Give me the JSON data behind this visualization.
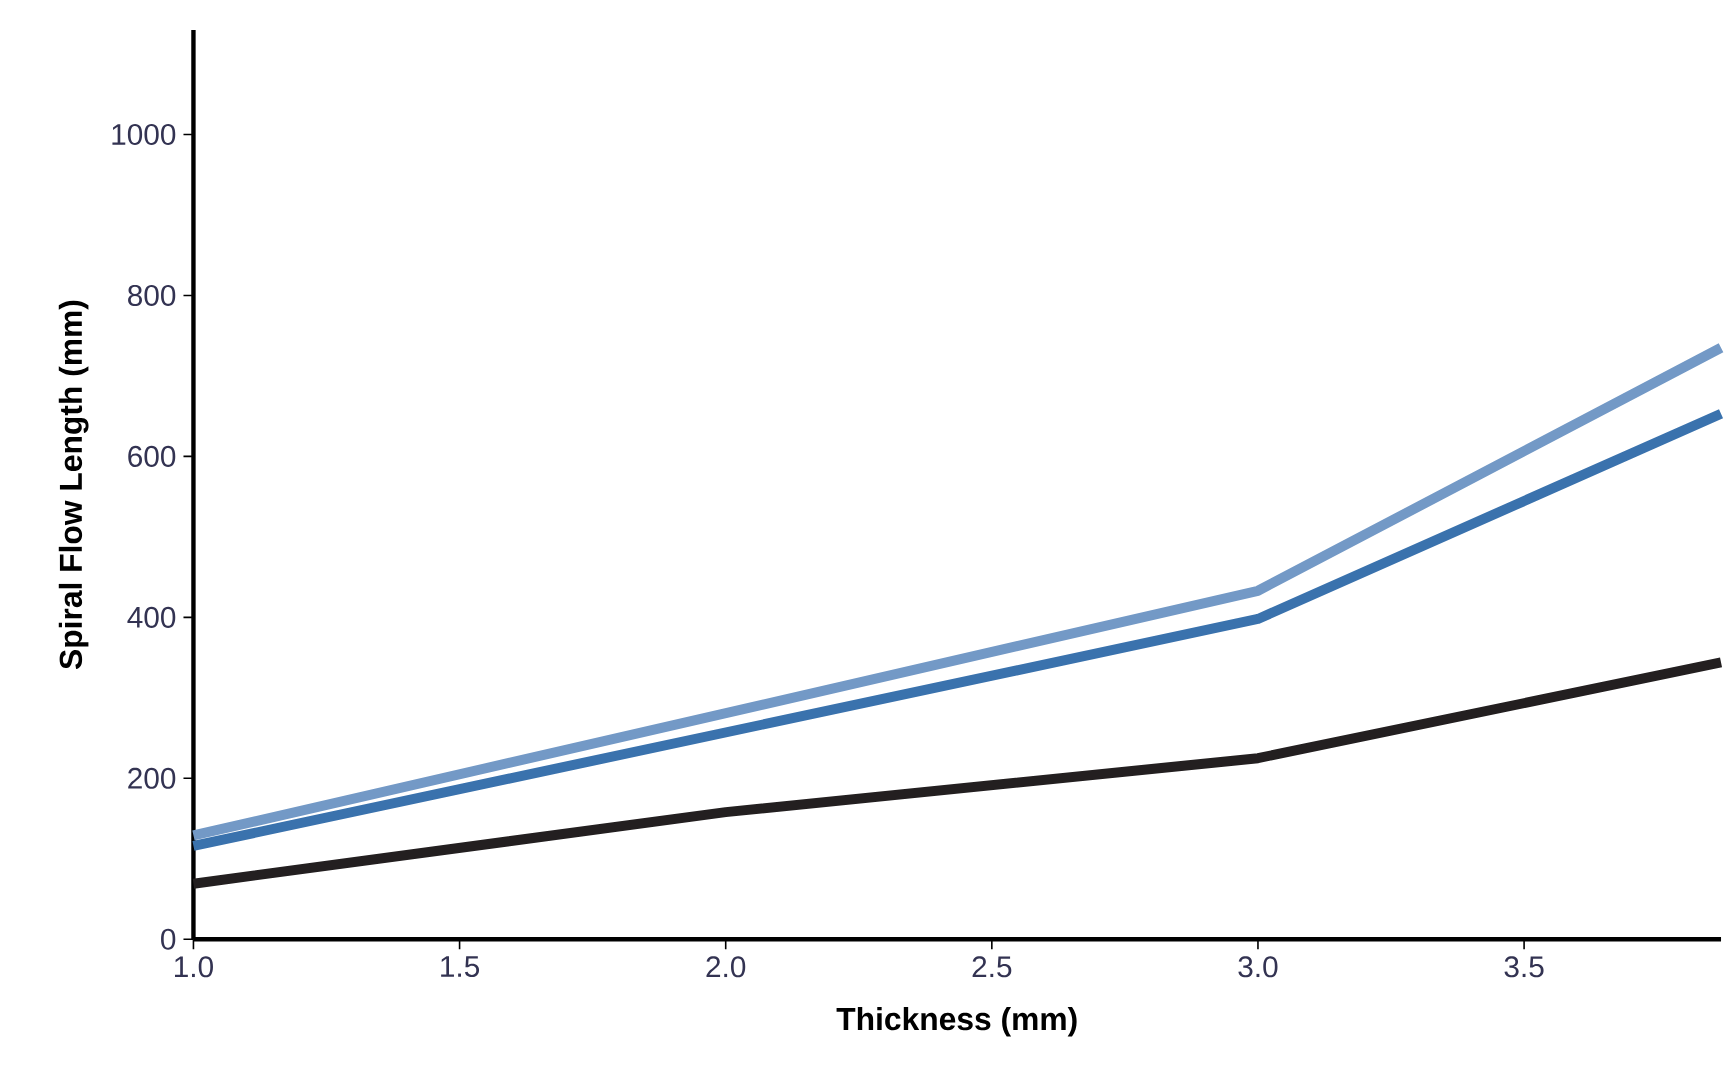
{
  "chart_data": {
    "type": "line",
    "xlabel": "Thickness (mm)",
    "ylabel": "Spiral Flow Length (mm)",
    "xlim": [
      1.0,
      3.87
    ],
    "ylim": [
      0,
      1130
    ],
    "xticks": [
      {
        "value": 1.0,
        "label": "1.0"
      },
      {
        "value": 1.5,
        "label": "1.5"
      },
      {
        "value": 2.0,
        "label": "2.0"
      },
      {
        "value": 2.5,
        "label": "2.5"
      },
      {
        "value": 3.0,
        "label": "3.0"
      },
      {
        "value": 3.5,
        "label": "3.5"
      }
    ],
    "yticks": [
      0,
      200,
      400,
      600,
      800,
      1000
    ],
    "grid": false,
    "marker": "none",
    "line_style": "solid",
    "series": [
      {
        "color": "#7399c6",
        "x": [
          1.0,
          3.0,
          3.87
        ],
        "values": [
          129,
          433,
          735
        ]
      },
      {
        "color": "#3a72ad",
        "x": [
          1.0,
          3.0,
          3.87
        ],
        "values": [
          116,
          398,
          653
        ]
      },
      {
        "color": "#231f20",
        "x": [
          1.0,
          2.0,
          3.0,
          3.87
        ],
        "values": [
          69,
          158,
          225,
          344
        ]
      }
    ]
  }
}
